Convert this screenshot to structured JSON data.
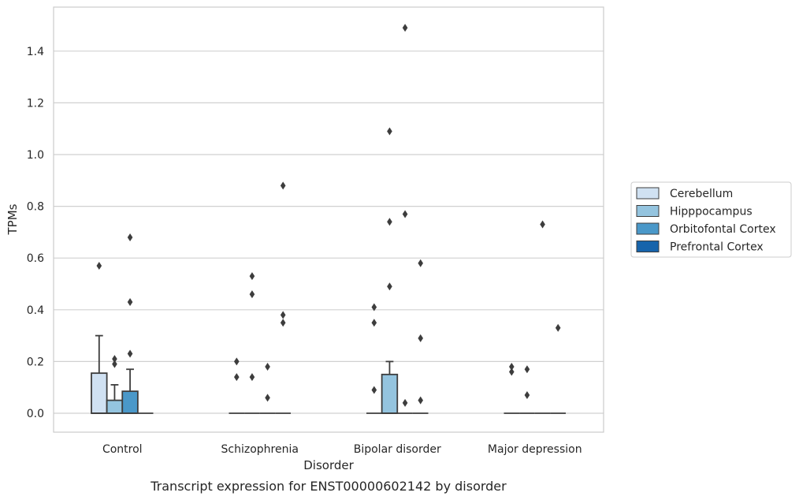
{
  "chart_data": {
    "type": "box",
    "title": "",
    "caption": "Transcript expression for ENST00000602142 by disorder",
    "xlabel": "Disorder",
    "ylabel": "TPMs",
    "ylim": [
      -0.07,
      1.57
    ],
    "yticks": [
      0.0,
      0.2,
      0.4,
      0.6,
      0.8,
      1.0,
      1.2,
      1.4
    ],
    "ytick_labels": [
      "0.0",
      "0.2",
      "0.4",
      "0.6",
      "0.8",
      "1.0",
      "1.2",
      "1.4"
    ],
    "grid": "horizontal",
    "legend_position": "right",
    "categories": [
      "Control",
      "Schizophrenia",
      "Bipolar disorder",
      "Major depression"
    ],
    "series": [
      {
        "name": "Cerebellum",
        "color": "#d0e1f2",
        "boxes": [
          {
            "q1": 0.0,
            "median": 0.0,
            "q3": 0.155,
            "whisker_low": 0.0,
            "whisker_high": 0.3,
            "outliers": [
              0.57
            ]
          },
          {
            "q1": 0.0,
            "median": 0.0,
            "q3": 0.0,
            "whisker_low": 0.0,
            "whisker_high": 0.0,
            "outliers": [
              0.14,
              0.2
            ]
          },
          {
            "q1": 0.0,
            "median": 0.0,
            "q3": 0.0,
            "whisker_low": 0.0,
            "whisker_high": 0.0,
            "outliers": [
              0.09,
              0.35,
              0.41
            ]
          },
          {
            "q1": 0.0,
            "median": 0.0,
            "q3": 0.0,
            "whisker_low": 0.0,
            "whisker_high": 0.0,
            "outliers": [
              0.16,
              0.18
            ]
          }
        ]
      },
      {
        "name": "Hipppocampus",
        "color": "#94c4df",
        "boxes": [
          {
            "q1": 0.0,
            "median": 0.0,
            "q3": 0.05,
            "whisker_low": 0.0,
            "whisker_high": 0.11,
            "outliers": [
              0.19,
              0.21
            ]
          },
          {
            "q1": 0.0,
            "median": 0.0,
            "q3": 0.0,
            "whisker_low": 0.0,
            "whisker_high": 0.0,
            "outliers": [
              0.14,
              0.46,
              0.53
            ]
          },
          {
            "q1": 0.0,
            "median": 0.0,
            "q3": 0.15,
            "whisker_low": 0.0,
            "whisker_high": 0.2,
            "outliers": [
              0.49,
              0.74,
              1.09
            ]
          },
          {
            "q1": 0.0,
            "median": 0.0,
            "q3": 0.0,
            "whisker_low": 0.0,
            "whisker_high": 0.0,
            "outliers": [
              0.07,
              0.17
            ]
          }
        ]
      },
      {
        "name": "Orbitofontal Cortex",
        "color": "#4a98c9",
        "boxes": [
          {
            "q1": 0.0,
            "median": 0.0,
            "q3": 0.085,
            "whisker_low": 0.0,
            "whisker_high": 0.17,
            "outliers": [
              0.23,
              0.43,
              0.68
            ]
          },
          {
            "q1": 0.0,
            "median": 0.0,
            "q3": 0.0,
            "whisker_low": 0.0,
            "whisker_high": 0.0,
            "outliers": [
              0.06,
              0.18
            ]
          },
          {
            "q1": 0.0,
            "median": 0.0,
            "q3": 0.0,
            "whisker_low": 0.0,
            "whisker_high": 0.0,
            "outliers": [
              0.04,
              0.77,
              1.49
            ]
          },
          {
            "q1": 0.0,
            "median": 0.0,
            "q3": 0.0,
            "whisker_low": 0.0,
            "whisker_high": 0.0,
            "outliers": [
              0.73
            ]
          }
        ]
      },
      {
        "name": "Prefrontal Cortex",
        "color": "#1764ab",
        "boxes": [
          {
            "q1": 0.0,
            "median": 0.0,
            "q3": 0.0,
            "whisker_low": 0.0,
            "whisker_high": 0.0,
            "outliers": []
          },
          {
            "q1": 0.0,
            "median": 0.0,
            "q3": 0.0,
            "whisker_low": 0.0,
            "whisker_high": 0.0,
            "outliers": [
              0.35,
              0.38,
              0.88
            ]
          },
          {
            "q1": 0.0,
            "median": 0.0,
            "q3": 0.0,
            "whisker_low": 0.0,
            "whisker_high": 0.0,
            "outliers": [
              0.05,
              0.29,
              0.58
            ]
          },
          {
            "q1": 0.0,
            "median": 0.0,
            "q3": 0.0,
            "whisker_low": 0.0,
            "whisker_high": 0.0,
            "outliers": [
              0.33
            ]
          }
        ]
      }
    ]
  }
}
